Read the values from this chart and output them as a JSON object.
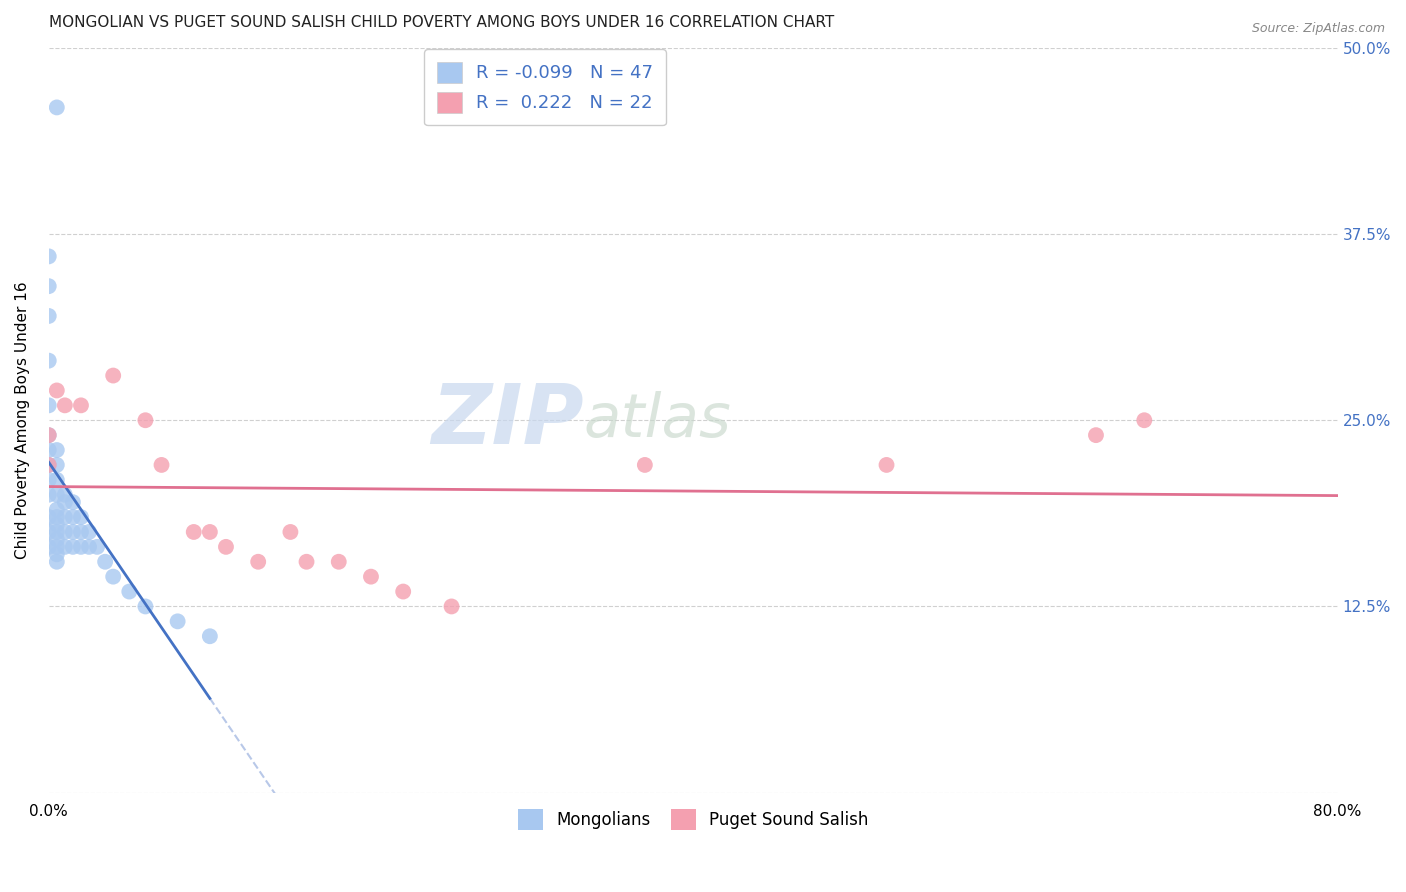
{
  "title": "MONGOLIAN VS PUGET SOUND SALISH CHILD POVERTY AMONG BOYS UNDER 16 CORRELATION CHART",
  "source": "Source: ZipAtlas.com",
  "ylabel": "Child Poverty Among Boys Under 16",
  "xlim": [
    0.0,
    0.8
  ],
  "ylim": [
    0.0,
    0.5
  ],
  "xticks": [
    0.0,
    0.1,
    0.2,
    0.3,
    0.4,
    0.5,
    0.6,
    0.7,
    0.8
  ],
  "xticklabels": [
    "0.0%",
    "",
    "",
    "",
    "",
    "",
    "",
    "",
    "80.0%"
  ],
  "ytick_positions": [
    0.0,
    0.125,
    0.25,
    0.375,
    0.5
  ],
  "ytick_labels_right": [
    "",
    "12.5%",
    "25.0%",
    "37.5%",
    "50.0%"
  ],
  "mongolians_x": [
    0.005,
    0.0,
    0.0,
    0.0,
    0.0,
    0.0,
    0.0,
    0.0,
    0.0,
    0.0,
    0.0,
    0.0,
    0.0,
    0.0,
    0.005,
    0.005,
    0.005,
    0.005,
    0.005,
    0.005,
    0.005,
    0.005,
    0.005,
    0.005,
    0.005,
    0.005,
    0.01,
    0.01,
    0.01,
    0.01,
    0.01,
    0.015,
    0.015,
    0.015,
    0.015,
    0.02,
    0.02,
    0.02,
    0.025,
    0.025,
    0.03,
    0.035,
    0.04,
    0.05,
    0.06,
    0.08,
    0.1
  ],
  "mongolians_y": [
    0.46,
    0.36,
    0.34,
    0.32,
    0.29,
    0.26,
    0.24,
    0.23,
    0.22,
    0.21,
    0.2,
    0.185,
    0.175,
    0.165,
    0.23,
    0.22,
    0.21,
    0.2,
    0.19,
    0.185,
    0.18,
    0.175,
    0.17,
    0.165,
    0.16,
    0.155,
    0.2,
    0.195,
    0.185,
    0.175,
    0.165,
    0.195,
    0.185,
    0.175,
    0.165,
    0.185,
    0.175,
    0.165,
    0.175,
    0.165,
    0.165,
    0.155,
    0.145,
    0.135,
    0.125,
    0.115,
    0.105
  ],
  "puget_x": [
    0.0,
    0.0,
    0.005,
    0.01,
    0.02,
    0.04,
    0.06,
    0.07,
    0.09,
    0.1,
    0.11,
    0.13,
    0.15,
    0.16,
    0.18,
    0.2,
    0.22,
    0.25,
    0.37,
    0.52,
    0.65,
    0.68
  ],
  "puget_y": [
    0.24,
    0.22,
    0.27,
    0.26,
    0.26,
    0.28,
    0.25,
    0.22,
    0.175,
    0.175,
    0.165,
    0.155,
    0.175,
    0.155,
    0.155,
    0.145,
    0.135,
    0.125,
    0.22,
    0.22,
    0.24,
    0.25
  ],
  "mongolians_color": "#a8c8f0",
  "puget_color": "#f4a0b0",
  "mongolians_line_color": "#4472c4",
  "puget_line_color": "#e07090",
  "dashed_line_color": "#b8c8e8",
  "background_color": "#ffffff",
  "grid_color": "#d0d0d0",
  "title_fontsize": 11,
  "axis_label_fontsize": 11,
  "tick_fontsize": 11,
  "legend_fontsize": 13,
  "marker_size": 130,
  "watermark_fontsize_zip": 60,
  "watermark_fontsize_atlas": 44
}
